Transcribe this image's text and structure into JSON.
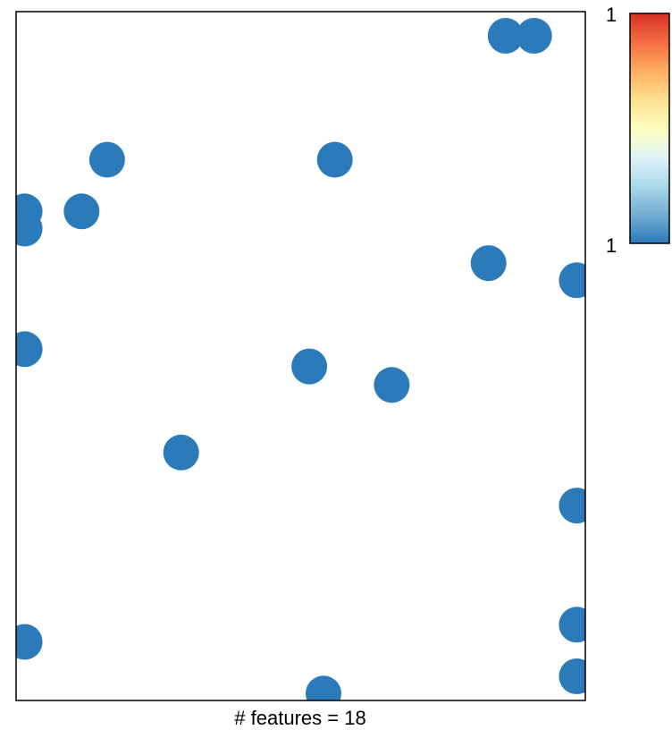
{
  "chart_data": {
    "type": "scatter",
    "title": "",
    "xlabel": "# features = 18",
    "ylabel": "",
    "xlim": [
      0,
      1
    ],
    "ylim": [
      0,
      1
    ],
    "grid": false,
    "point_color": "#2b7bba",
    "points": [
      {
        "x": 0.86,
        "y": 0.965
      },
      {
        "x": 0.91,
        "y": 0.965
      },
      {
        "x": 0.16,
        "y": 0.785
      },
      {
        "x": 0.56,
        "y": 0.785
      },
      {
        "x": 0.115,
        "y": 0.71
      },
      {
        "x": 0.015,
        "y": 0.71
      },
      {
        "x": 0.015,
        "y": 0.685
      },
      {
        "x": 0.83,
        "y": 0.635
      },
      {
        "x": 0.985,
        "y": 0.61
      },
      {
        "x": 0.015,
        "y": 0.51
      },
      {
        "x": 0.515,
        "y": 0.485
      },
      {
        "x": 0.66,
        "y": 0.458
      },
      {
        "x": 0.29,
        "y": 0.36
      },
      {
        "x": 0.985,
        "y": 0.283
      },
      {
        "x": 0.985,
        "y": 0.11
      },
      {
        "x": 0.015,
        "y": 0.085
      },
      {
        "x": 0.985,
        "y": 0.035
      },
      {
        "x": 0.54,
        "y": 0.01
      }
    ],
    "colorbar": {
      "top_label": "1",
      "bottom_label": "1",
      "colors": [
        "#d73027",
        "#f46d43",
        "#fdae61",
        "#fee090",
        "#ffffbf",
        "#e0f3f8",
        "#abd9e9",
        "#74add1",
        "#2b7bba"
      ]
    }
  }
}
